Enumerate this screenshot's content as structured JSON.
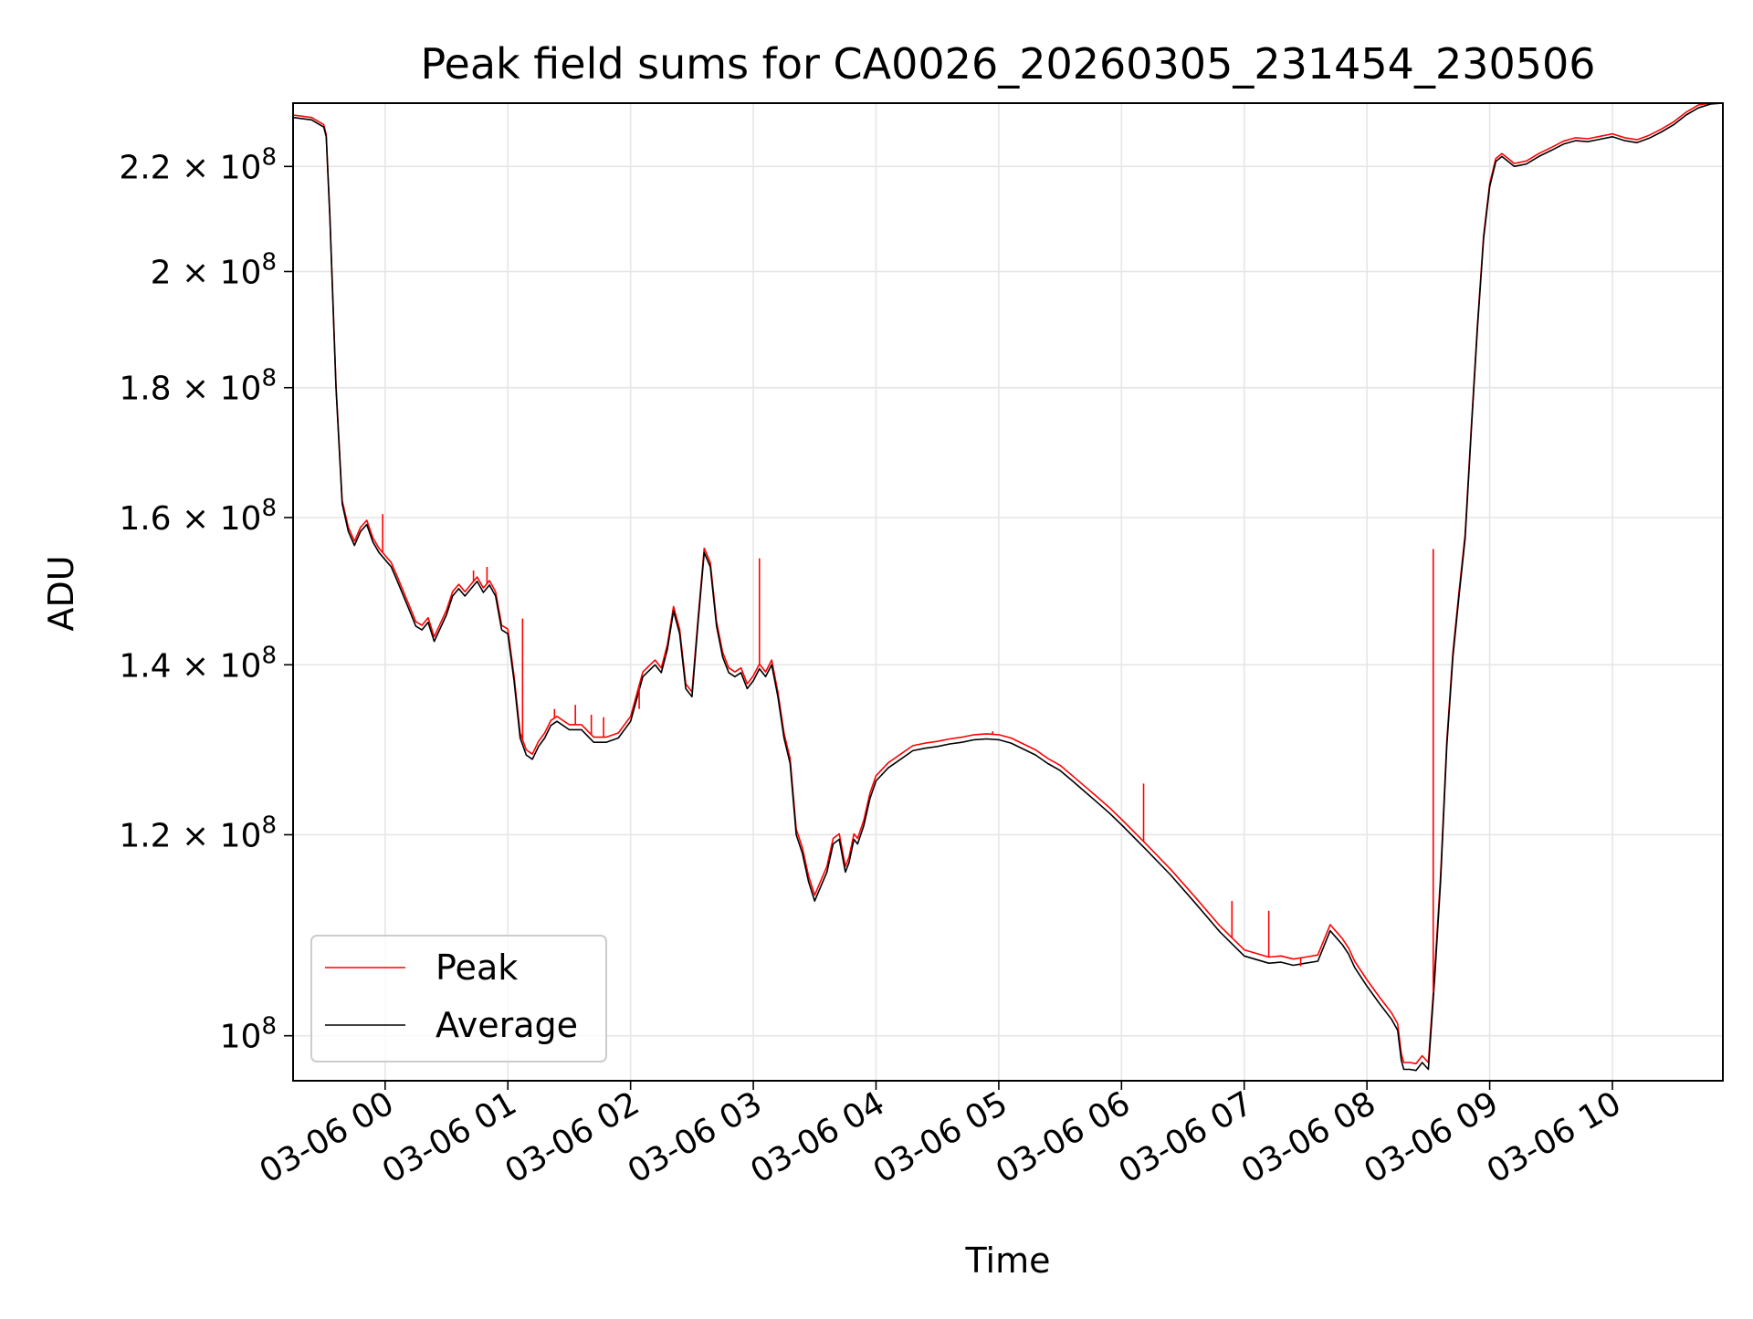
{
  "chart_data": {
    "type": "line",
    "title": "Peak field sums for CA0026_20260305_231454_230506",
    "xlabel": "Time",
    "ylabel": "ADU",
    "yscale": "log",
    "ylim": [
      96000000,
      233000000
    ],
    "xlim_hours": [
      -0.75,
      10.9
    ],
    "grid": true,
    "legend_position": "lower left",
    "colors": {
      "peak": "#ff0000",
      "average": "#000000",
      "grid": "#e6e6e6"
    },
    "x_ticks": [
      {
        "hour": 0,
        "label": "03-06 00"
      },
      {
        "hour": 1,
        "label": "03-06 01"
      },
      {
        "hour": 2,
        "label": "03-06 02"
      },
      {
        "hour": 3,
        "label": "03-06 03"
      },
      {
        "hour": 4,
        "label": "03-06 04"
      },
      {
        "hour": 5,
        "label": "03-06 05"
      },
      {
        "hour": 6,
        "label": "03-06 06"
      },
      {
        "hour": 7,
        "label": "03-06 07"
      },
      {
        "hour": 8,
        "label": "03-06 08"
      },
      {
        "hour": 9,
        "label": "03-06 09"
      },
      {
        "hour": 10,
        "label": "03-06 10"
      }
    ],
    "y_ticks": [
      {
        "value": 100000000,
        "mant": "10",
        "coef": "",
        "exp": "8"
      },
      {
        "value": 120000000,
        "mant": "10",
        "coef": "1.2 × ",
        "exp": "8"
      },
      {
        "value": 140000000,
        "mant": "10",
        "coef": "1.4 × ",
        "exp": "8"
      },
      {
        "value": 160000000,
        "mant": "10",
        "coef": "1.6 × ",
        "exp": "8"
      },
      {
        "value": 180000000,
        "mant": "10",
        "coef": "1.8 × ",
        "exp": "8"
      },
      {
        "value": 200000000,
        "mant": "10",
        "coef": "2 × ",
        "exp": "8"
      },
      {
        "value": 220000000,
        "mant": "10",
        "coef": "2.2 × ",
        "exp": "8"
      }
    ],
    "series": [
      {
        "name": "Average",
        "x_hours": [
          -0.75,
          -0.6,
          -0.5,
          -0.48,
          -0.45,
          -0.4,
          -0.35,
          -0.3,
          -0.25,
          -0.2,
          -0.15,
          -0.1,
          -0.05,
          0.0,
          0.05,
          0.1,
          0.2,
          0.25,
          0.3,
          0.35,
          0.4,
          0.5,
          0.55,
          0.6,
          0.65,
          0.7,
          0.75,
          0.8,
          0.85,
          0.9,
          0.95,
          1.0,
          1.05,
          1.1,
          1.15,
          1.2,
          1.25,
          1.3,
          1.35,
          1.4,
          1.5,
          1.6,
          1.7,
          1.8,
          1.9,
          2.0,
          2.1,
          2.2,
          2.25,
          2.3,
          2.35,
          2.4,
          2.45,
          2.5,
          2.55,
          2.6,
          2.65,
          2.7,
          2.75,
          2.8,
          2.85,
          2.9,
          2.95,
          3.0,
          3.05,
          3.1,
          3.15,
          3.2,
          3.25,
          3.3,
          3.35,
          3.4,
          3.45,
          3.5,
          3.55,
          3.6,
          3.65,
          3.7,
          3.75,
          3.78,
          3.82,
          3.85,
          3.9,
          3.95,
          4.0,
          4.1,
          4.2,
          4.3,
          4.4,
          4.5,
          4.6,
          4.7,
          4.8,
          4.9,
          5.0,
          5.1,
          5.2,
          5.3,
          5.4,
          5.5,
          5.6,
          5.7,
          5.8,
          5.9,
          6.0,
          6.2,
          6.4,
          6.6,
          6.8,
          7.0,
          7.2,
          7.3,
          7.4,
          7.5,
          7.6,
          7.7,
          7.75,
          7.8,
          7.85,
          7.9,
          8.0,
          8.1,
          8.2,
          8.25,
          8.28,
          8.3,
          8.35,
          8.4,
          8.45,
          8.5,
          8.55,
          8.6,
          8.65,
          8.7,
          8.75,
          8.8,
          8.85,
          8.9,
          8.95,
          9.0,
          9.05,
          9.1,
          9.15,
          9.2,
          9.3,
          9.4,
          9.5,
          9.6,
          9.7,
          9.8,
          9.9,
          10.0,
          10.1,
          10.2,
          10.3,
          10.4,
          10.5,
          10.6,
          10.7,
          10.8,
          10.9
        ],
        "values": [
          230000000,
          229500000,
          228000000,
          226000000,
          210000000,
          180000000,
          162000000,
          158000000,
          156000000,
          158000000,
          159000000,
          156500000,
          155000000,
          154000000,
          153000000,
          151000000,
          147000000,
          145000000,
          144500000,
          145500000,
          143000000,
          146500000,
          149000000,
          150000000,
          149000000,
          150000000,
          151000000,
          149500000,
          150500000,
          149000000,
          144500000,
          144000000,
          138000000,
          131000000,
          129000000,
          128500000,
          130000000,
          131000000,
          132500000,
          133000000,
          132000000,
          132000000,
          130500000,
          130500000,
          131000000,
          133000000,
          138500000,
          140000000,
          139000000,
          142000000,
          147000000,
          144000000,
          137000000,
          136000000,
          145500000,
          155000000,
          153000000,
          145000000,
          141000000,
          139000000,
          138500000,
          139000000,
          137000000,
          138000000,
          139500000,
          138500000,
          140000000,
          136000000,
          131000000,
          128000000,
          120000000,
          118000000,
          115000000,
          113000000,
          114500000,
          116000000,
          119000000,
          119500000,
          116000000,
          117000000,
          119500000,
          119000000,
          121000000,
          124000000,
          126000000,
          127500000,
          128500000,
          129500000,
          129800000,
          130000000,
          130300000,
          130500000,
          130800000,
          130900000,
          130800000,
          130400000,
          129700000,
          129000000,
          128000000,
          127200000,
          126000000,
          124800000,
          123600000,
          122400000,
          121100000,
          118400000,
          115700000,
          112800000,
          109900000,
          107500000,
          106800000,
          106900000,
          106600000,
          106800000,
          107000000,
          110000000,
          109300000,
          108600000,
          107700000,
          106400000,
          104600000,
          103000000,
          101500000,
          100500000,
          97800000,
          97000000,
          97000000,
          96900000,
          97600000,
          97000000,
          105000000,
          115000000,
          130000000,
          141000000,
          149000000,
          157000000,
          173000000,
          190000000,
          206000000,
          216000000,
          221000000,
          222000000,
          221000000,
          220000000,
          220500000,
          222000000,
          223200000,
          224500000,
          225200000,
          225000000,
          225500000,
          226000000,
          225200000,
          224800000,
          225700000,
          227000000,
          228500000,
          230500000,
          232000000,
          232800000,
          233000000
        ]
      },
      {
        "name": "Peak",
        "x_hours": [
          -0.75,
          -0.6,
          -0.5,
          -0.48,
          -0.45,
          -0.4,
          -0.35,
          -0.3,
          -0.25,
          -0.2,
          -0.15,
          -0.1,
          -0.05,
          0.0,
          0.05,
          0.1,
          0.2,
          0.25,
          0.3,
          0.35,
          0.4,
          0.5,
          0.55,
          0.6,
          0.65,
          0.7,
          0.75,
          0.8,
          0.85,
          0.9,
          0.95,
          1.0,
          1.05,
          1.1,
          1.15,
          1.2,
          1.25,
          1.3,
          1.35,
          1.4,
          1.5,
          1.6,
          1.7,
          1.8,
          1.9,
          2.0,
          2.1,
          2.2,
          2.25,
          2.3,
          2.35,
          2.4,
          2.45,
          2.5,
          2.55,
          2.6,
          2.65,
          2.7,
          2.75,
          2.8,
          2.85,
          2.9,
          2.95,
          3.0,
          3.05,
          3.1,
          3.15,
          3.2,
          3.25,
          3.3,
          3.35,
          3.4,
          3.45,
          3.5,
          3.55,
          3.6,
          3.65,
          3.7,
          3.75,
          3.78,
          3.82,
          3.85,
          3.9,
          3.95,
          4.0,
          4.1,
          4.2,
          4.3,
          4.4,
          4.5,
          4.6,
          4.7,
          4.8,
          4.9,
          5.0,
          5.1,
          5.2,
          5.3,
          5.4,
          5.5,
          5.6,
          5.7,
          5.8,
          5.9,
          6.0,
          6.2,
          6.4,
          6.6,
          6.8,
          7.0,
          7.2,
          7.3,
          7.4,
          7.5,
          7.6,
          7.7,
          7.75,
          7.8,
          7.85,
          7.9,
          8.0,
          8.1,
          8.2,
          8.25,
          8.28,
          8.3,
          8.35,
          8.4,
          8.45,
          8.5,
          8.55,
          8.6,
          8.65,
          8.7,
          8.75,
          8.8,
          8.85,
          8.9,
          8.95,
          9.0,
          9.05,
          9.1,
          9.15,
          9.2,
          9.3,
          9.4,
          9.5,
          9.6,
          9.7,
          9.8,
          9.9,
          10.0,
          10.1,
          10.2,
          10.3,
          10.4,
          10.5,
          10.6,
          10.7,
          10.8,
          10.9
        ],
        "values": [
          230500000,
          230000000,
          228500000,
          226500000,
          210500000,
          180500000,
          162500000,
          158600000,
          156600000,
          158600000,
          159600000,
          157100000,
          155600000,
          154600000,
          153600000,
          151600000,
          147600000,
          145600000,
          145100000,
          146100000,
          143600000,
          147100000,
          149600000,
          150600000,
          149600000,
          150600000,
          151600000,
          150100000,
          151100000,
          149600000,
          145100000,
          144600000,
          138600000,
          131600000,
          129600000,
          129100000,
          130600000,
          131600000,
          133100000,
          133600000,
          132600000,
          132600000,
          131100000,
          131100000,
          131600000,
          133600000,
          139100000,
          140600000,
          139600000,
          142600000,
          147600000,
          144600000,
          137600000,
          136600000,
          146100000,
          155600000,
          153600000,
          145600000,
          141600000,
          139600000,
          139100000,
          139600000,
          137600000,
          138600000,
          140100000,
          139100000,
          140600000,
          136600000,
          131600000,
          128600000,
          120600000,
          118600000,
          115600000,
          113600000,
          115100000,
          116600000,
          119600000,
          120100000,
          116600000,
          117600000,
          120100000,
          119600000,
          121600000,
          124600000,
          126600000,
          128100000,
          129100000,
          130100000,
          130400000,
          130600000,
          130900000,
          131100000,
          131400000,
          131500000,
          131400000,
          131000000,
          130300000,
          129600000,
          128600000,
          127800000,
          126600000,
          125400000,
          124200000,
          123000000,
          121700000,
          119000000,
          116300000,
          113400000,
          110500000,
          108100000,
          107400000,
          107500000,
          107200000,
          107400000,
          107600000,
          110600000,
          109900000,
          109200000,
          108300000,
          107000000,
          105200000,
          103600000,
          102100000,
          101100000,
          98400000,
          97600000,
          97600000,
          97500000,
          98200000,
          97600000,
          105600000,
          115600000,
          130600000,
          141600000,
          149600000,
          157600000,
          173600000,
          190600000,
          206600000,
          216600000,
          221600000,
          222600000,
          221600000,
          220600000,
          221100000,
          222600000,
          223800000,
          225100000,
          225800000,
          225600000,
          226100000,
          226600000,
          225800000,
          225400000,
          226300000,
          227600000,
          229100000,
          231100000,
          232600000,
          233000000,
          233000000
        ]
      }
    ],
    "peak_spikes": [
      {
        "hour": -0.02,
        "value": 160500000
      },
      {
        "hour": 0.72,
        "value": 152500000
      },
      {
        "hour": 0.83,
        "value": 153000000
      },
      {
        "hour": 1.12,
        "value": 146000000
      },
      {
        "hour": 1.38,
        "value": 134500000
      },
      {
        "hour": 1.55,
        "value": 135000000
      },
      {
        "hour": 1.68,
        "value": 133800000
      },
      {
        "hour": 1.78,
        "value": 133500000
      },
      {
        "hour": 2.07,
        "value": 134500000
      },
      {
        "hour": 2.28,
        "value": 141000000
      },
      {
        "hour": 3.05,
        "value": 154200000
      },
      {
        "hour": 4.95,
        "value": 131800000
      },
      {
        "hour": 6.18,
        "value": 125700000
      },
      {
        "hour": 6.9,
        "value": 113000000
      },
      {
        "hour": 7.2,
        "value": 112000000
      },
      {
        "hour": 7.46,
        "value": 106500000
      },
      {
        "hour": 8.54,
        "value": 155500000
      }
    ],
    "legend": [
      {
        "name": "Peak",
        "color": "#ff0000"
      },
      {
        "name": "Average",
        "color": "#000000"
      }
    ]
  }
}
